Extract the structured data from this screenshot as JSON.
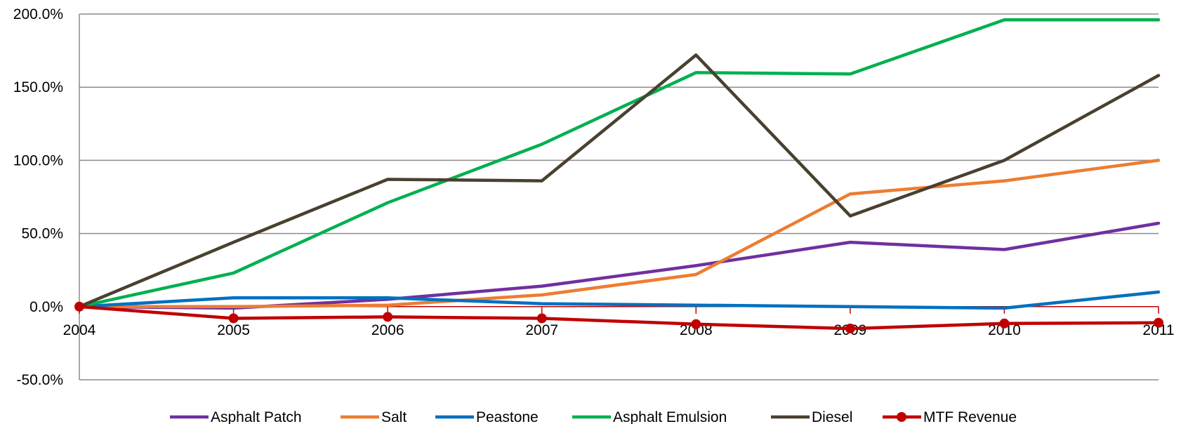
{
  "chart_data": {
    "type": "line",
    "title": "",
    "xlabel": "",
    "ylabel": "",
    "x": [
      "2004",
      "2005",
      "2006",
      "2007",
      "2008",
      "2009",
      "2010",
      "2011"
    ],
    "ylim": [
      -50,
      200
    ],
    "y_ticks": [
      {
        "value": 200,
        "label": "200.0%"
      },
      {
        "value": 150,
        "label": "150.0%"
      },
      {
        "value": 100,
        "label": "100.0%"
      },
      {
        "value": 50,
        "label": "50.0%"
      },
      {
        "value": 0,
        "label": "0.0%"
      },
      {
        "value": -50,
        "label": "-50.0%"
      }
    ],
    "grid": true,
    "legend_position": "bottom",
    "series": [
      {
        "name": "Asphalt Patch",
        "color": "#7030A0",
        "marker": false,
        "values": [
          0,
          -1,
          5,
          14,
          28,
          44,
          39,
          57
        ]
      },
      {
        "name": "Salt",
        "color": "#ED7D31",
        "marker": false,
        "values": [
          0,
          0,
          1,
          8,
          22,
          77,
          86,
          100
        ]
      },
      {
        "name": "Peastone",
        "color": "#0070C0",
        "marker": false,
        "values": [
          0,
          6,
          6,
          2,
          1,
          0,
          -1,
          10
        ]
      },
      {
        "name": "Asphalt Emulsion",
        "color": "#00B050",
        "marker": false,
        "values": [
          0,
          23,
          71,
          111,
          160,
          159,
          196,
          196
        ]
      },
      {
        "name": "Diesel",
        "color": "#4A4030",
        "marker": false,
        "values": [
          0,
          44,
          87,
          86,
          172,
          62,
          100,
          158
        ]
      },
      {
        "name": "MTF Revenue",
        "color": "#C00000",
        "marker": true,
        "values": [
          0,
          -8,
          -7,
          -8,
          -12,
          -15,
          -11.5,
          -11
        ]
      }
    ]
  }
}
